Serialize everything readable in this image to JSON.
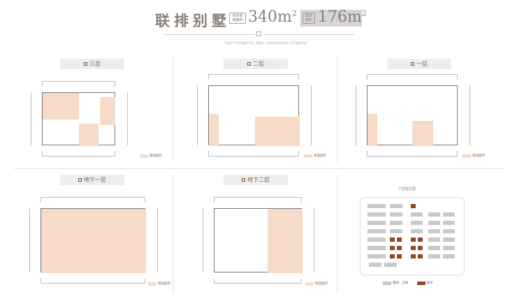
{
  "header": {
    "title": "联排别墅",
    "area1_label": "实际使用面积",
    "area1_value": "340m",
    "area1_sup": "2",
    "area2_label": "建筑面积",
    "area2_value": "176m",
    "area2_sup": "2",
    "note": "*该地产户型可能有不同，最终以《商品房买卖合同》及平面图为准"
  },
  "panels": [
    {
      "title": "三层",
      "legend": "赠送面积"
    },
    {
      "title": "二层",
      "legend": "赠送面积"
    },
    {
      "title": "一层",
      "legend": "赠送面积"
    },
    {
      "title": "地下一层",
      "legend": "赠送面积"
    },
    {
      "title": "地下二层",
      "legend": "赠送面积"
    },
    {
      "title": "户型落位图",
      "legend_a": "叠拼、双拼",
      "legend_b": "联排"
    }
  ],
  "colors": {
    "gift_area": "#f6dcc8",
    "townhouse": "#8b4a22",
    "other": "#c9c9c9",
    "title": "#8a7e79"
  }
}
